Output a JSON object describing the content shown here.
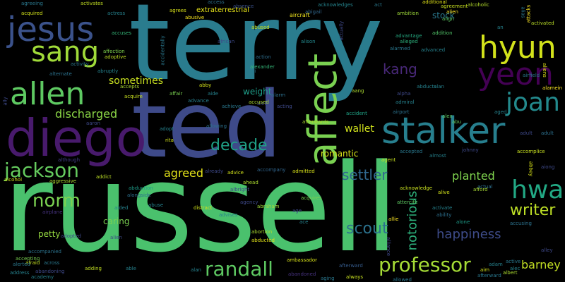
{
  "words": [
    {
      "text": "terry",
      "color": "#2a7c8e"
    },
    {
      "text": "ted",
      "color": "#3e4a89"
    },
    {
      "text": "russell",
      "color": "#4ac16d"
    },
    {
      "text": "diego",
      "color": "#481a6c"
    },
    {
      "text": "affect",
      "color": "#7ad151"
    },
    {
      "text": "stalker",
      "color": "#277f8e"
    },
    {
      "text": "jesus",
      "color": "#3b528b"
    },
    {
      "text": "allen",
      "color": "#5ec962"
    },
    {
      "text": "sang",
      "color": "#a0da39"
    },
    {
      "text": "hyun",
      "color": "#d2e21b"
    },
    {
      "text": "yeon",
      "color": "#440154"
    },
    {
      "text": "joan",
      "color": "#238a8d"
    },
    {
      "text": "jackson",
      "color": "#65cb5e"
    },
    {
      "text": "randall",
      "color": "#5ec962"
    },
    {
      "text": "professor",
      "color": "#a5db36"
    },
    {
      "text": "hwa",
      "color": "#22a884"
    },
    {
      "text": "writer",
      "color": "#bddf26"
    },
    {
      "text": "norm",
      "color": "#7ad151"
    },
    {
      "text": "scout",
      "color": "#2c728e"
    },
    {
      "text": "kang",
      "color": "#482878"
    },
    {
      "text": "decade",
      "color": "#1fa187"
    },
    {
      "text": "settler",
      "color": "#31688e"
    },
    {
      "text": "happiness",
      "color": "#3e4c8a"
    },
    {
      "text": "notorious",
      "color": "#2db27d"
    },
    {
      "text": "barney",
      "color": "#c2df23"
    },
    {
      "text": "planted",
      "color": "#7fd34e"
    },
    {
      "text": "agreed",
      "color": "#e5e419"
    },
    {
      "text": "discharged",
      "color": "#8bd646"
    },
    {
      "text": "sometimes",
      "color": "#c8e020"
    },
    {
      "text": "wallet",
      "color": "#d0e11c"
    },
    {
      "text": "romantic",
      "color": "#d8e219"
    },
    {
      "text": "caring",
      "color": "#7ad151"
    },
    {
      "text": "petty",
      "color": "#95d840"
    },
    {
      "text": "weight",
      "color": "#1f9e89"
    },
    {
      "text": "stock",
      "color": "#2a788e"
    },
    {
      "text": "extraterrestrial",
      "color": "#e7e419"
    },
    {
      "text": "aircraft",
      "color": "#f1e51d"
    },
    {
      "text": "abusive",
      "color": "#f8e621"
    },
    {
      "text": "access",
      "color": "#2d718e"
    },
    {
      "text": "accidentally",
      "color": "#2a788e"
    },
    {
      "text": "actually",
      "color": "#3e4989"
    },
    {
      "text": "acknowledges",
      "color": "#25858e"
    },
    {
      "text": "ambition",
      "color": "#9fda3a"
    },
    {
      "text": "additional",
      "color": "#e2e418"
    },
    {
      "text": "agreement",
      "color": "#c8e020"
    },
    {
      "text": "alcoholic",
      "color": "#b5de2b"
    },
    {
      "text": "alien",
      "color": "#fde725"
    },
    {
      "text": "align",
      "color": "#5ec962"
    },
    {
      "text": "addition",
      "color": "#52c569"
    },
    {
      "text": "activated",
      "color": "#bade28"
    },
    {
      "text": "advantage",
      "color": "#25ab82"
    },
    {
      "text": "alleged",
      "color": "#2db27d"
    },
    {
      "text": "abduction",
      "color": "#1e9c89"
    },
    {
      "text": "abducted",
      "color": "#e2e418"
    },
    {
      "text": "abortion",
      "color": "#addc30"
    },
    {
      "text": "abraham",
      "color": "#9fda3a"
    },
    {
      "text": "ambassador",
      "color": "#d8e219"
    },
    {
      "text": "afterward",
      "color": "#365c8d"
    },
    {
      "text": "accompanied",
      "color": "#2c738e"
    },
    {
      "text": "accompany",
      "color": "#31668e"
    },
    {
      "text": "acknowledge",
      "color": "#c8e020"
    },
    {
      "text": "afford",
      "color": "#a8db34"
    },
    {
      "text": "attacks",
      "color": "#fde725"
    },
    {
      "text": "alongside",
      "color": "#2d708e"
    },
    {
      "text": "aggressive",
      "color": "#addc30"
    },
    {
      "text": "airplane",
      "color": "#46327e"
    },
    {
      "text": "addict",
      "color": "#bddf26"
    },
    {
      "text": "alcohol",
      "color": "#d2e21b"
    },
    {
      "text": "although",
      "color": "#433e85"
    },
    {
      "text": "alexander",
      "color": "#35b779"
    },
    {
      "text": "african",
      "color": "#3e4a89"
    },
    {
      "text": "abused",
      "color": "#c5e021"
    },
    {
      "text": "absence",
      "color": "#3b528b"
    },
    {
      "text": "action",
      "color": "#2e6e8e"
    },
    {
      "text": "alison",
      "color": "#23898e"
    },
    {
      "text": "abigail",
      "color": "#31688e"
    },
    {
      "text": "agrees",
      "color": "#d8e219"
    },
    {
      "text": "affair",
      "color": "#7ad151"
    },
    {
      "text": "advance",
      "color": "#277f8e"
    },
    {
      "text": "affection",
      "color": "#7fd34e"
    },
    {
      "text": "adoptive",
      "color": "#c0df25"
    },
    {
      "text": "activity",
      "color": "#2a788e"
    },
    {
      "text": "abruptly",
      "color": "#26828e"
    },
    {
      "text": "alternate",
      "color": "#2c728e"
    },
    {
      "text": "accuses",
      "color": "#35b779"
    },
    {
      "text": "activates",
      "color": "#c2df23"
    },
    {
      "text": "actress",
      "color": "#26828e"
    },
    {
      "text": "agreeing",
      "color": "#2a788e"
    },
    {
      "text": "acquired",
      "color": "#d2e21b"
    },
    {
      "text": "alarm",
      "color": "#2d708e"
    },
    {
      "text": "alpha",
      "color": "#3e4989"
    },
    {
      "text": "admiral",
      "color": "#26828e"
    },
    {
      "text": "airport",
      "color": "#2c728e"
    },
    {
      "text": "accident",
      "color": "#20a386"
    },
    {
      "text": "alex",
      "color": "#5ec962"
    },
    {
      "text": "aged",
      "color": "#26828e"
    },
    {
      "text": "abu",
      "color": "#65cb5e"
    },
    {
      "text": "adult",
      "color": "#2d708e"
    },
    {
      "text": "accomplice",
      "color": "#c8e020"
    },
    {
      "text": "abbey",
      "color": "#d8e219"
    },
    {
      "text": "aiong",
      "color": "#3e4989"
    },
    {
      "text": "aliens",
      "color": "#e2e418"
    },
    {
      "text": "airfield",
      "color": "#2a788e"
    },
    {
      "text": "alamein",
      "color": "#fde725"
    },
    {
      "text": "actual",
      "color": "#2d708e"
    },
    {
      "text": "accusing",
      "color": "#2c728e"
    },
    {
      "text": "alone",
      "color": "#1e9c89"
    },
    {
      "text": "activate",
      "color": "#26828e"
    },
    {
      "text": "ability",
      "color": "#2d708e"
    },
    {
      "text": "alive",
      "color": "#d2e21b"
    },
    {
      "text": "attercife",
      "color": "#5ec962"
    },
    {
      "text": "allie",
      "color": "#fde725"
    },
    {
      "text": "alliance",
      "color": "#3e4989"
    },
    {
      "text": "adopted",
      "color": "#3e4989"
    },
    {
      "text": "aided",
      "color": "#26828e"
    },
    {
      "text": "alien",
      "color": "#3e4989"
    },
    {
      "text": "afraid",
      "color": "#c8e020"
    },
    {
      "text": "across",
      "color": "#2a788e"
    },
    {
      "text": "abandoning",
      "color": "#3e4989"
    },
    {
      "text": "academy",
      "color": "#26828e"
    },
    {
      "text": "accepting",
      "color": "#7ad151"
    },
    {
      "text": "alerted",
      "color": "#2a788e"
    },
    {
      "text": "address",
      "color": "#26828e"
    },
    {
      "text": "adding",
      "color": "#c2df23"
    },
    {
      "text": "able",
      "color": "#26828e"
    },
    {
      "text": "alan",
      "color": "#26828e"
    },
    {
      "text": "aging",
      "color": "#2a788e"
    },
    {
      "text": "always",
      "color": "#c8e020"
    },
    {
      "text": "abandoned",
      "color": "#46327e"
    },
    {
      "text": "allowed",
      "color": "#2a788e"
    },
    {
      "text": "aim",
      "color": "#d2e21b"
    },
    {
      "text": "adam",
      "color": "#26828e"
    },
    {
      "text": "albert",
      "color": "#addc30"
    },
    {
      "text": "afterward",
      "color": "#2a788e"
    },
    {
      "text": "active",
      "color": "#2a788e"
    },
    {
      "text": "alec",
      "color": "#26828e"
    },
    {
      "text": "alley",
      "color": "#3e4989"
    },
    {
      "text": "alert",
      "color": "#3e4989"
    },
    {
      "text": "acting",
      "color": "#3e4989"
    },
    {
      "text": "achieve",
      "color": "#2a788e"
    },
    {
      "text": "accused",
      "color": "#addc30"
    },
    {
      "text": "aide",
      "color": "#26828e"
    },
    {
      "text": "abby",
      "color": "#d2e21b"
    },
    {
      "text": "allowing",
      "color": "#2c728e"
    },
    {
      "text": "adopt",
      "color": "#26828e"
    },
    {
      "text": "rita",
      "color": "#d2e21b"
    },
    {
      "text": "aaron",
      "color": "#3e4989"
    },
    {
      "text": "accepts",
      "color": "#addc30"
    },
    {
      "text": "acquire",
      "color": "#c8e020"
    },
    {
      "text": "advice",
      "color": "#d2e21b"
    },
    {
      "text": "already",
      "color": "#3e4989"
    },
    {
      "text": "ahead",
      "color": "#addc30"
    },
    {
      "text": "albright",
      "color": "#3e4989"
    },
    {
      "text": "agency",
      "color": "#3e4989"
    },
    {
      "text": "advises",
      "color": "#26828e"
    },
    {
      "text": "distract",
      "color": "#d2e21b"
    },
    {
      "text": "abuse",
      "color": "#26828e"
    },
    {
      "text": "admitted",
      "color": "#d8e219"
    },
    {
      "text": "acquires",
      "color": "#7ad151"
    },
    {
      "text": "age",
      "color": "#3e4989"
    },
    {
      "text": "ace",
      "color": "#26828e"
    },
    {
      "text": "agent",
      "color": "#c8e020"
    },
    {
      "text": "accepted",
      "color": "#2a788e"
    },
    {
      "text": "almost",
      "color": "#26828e"
    },
    {
      "text": "johnny",
      "color": "#3e4989"
    },
    {
      "text": "aang",
      "color": "#addc30"
    },
    {
      "text": "ai",
      "color": "#2a788e"
    },
    {
      "text": "advanced",
      "color": "#26828e"
    },
    {
      "text": "alan",
      "color": "#26828e"
    },
    {
      "text": "abducts",
      "color": "#26828e"
    },
    {
      "text": "alias",
      "color": "#2a788e"
    },
    {
      "text": "act",
      "color": "#2a788e"
    },
    {
      "text": "afterwards",
      "color": "#addc30"
    },
    {
      "text": "adult",
      "color": "#3e4989"
    },
    {
      "text": "ally",
      "color": "#3e4989"
    },
    {
      "text": "alarmed",
      "color": "#2a788e"
    },
    {
      "text": "an",
      "color": "#26828e"
    }
  ]
}
